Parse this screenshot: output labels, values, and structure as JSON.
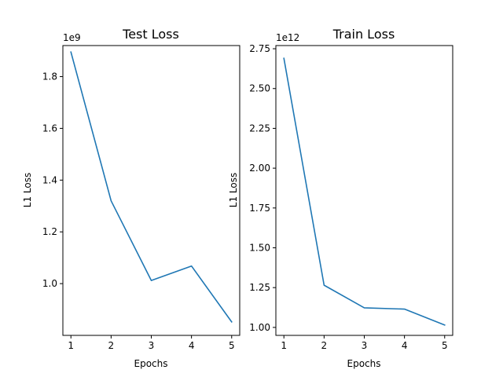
{
  "chart_data": [
    {
      "type": "line",
      "title": "Test Loss",
      "xlabel": "Epochs",
      "ylabel": "L1 Loss",
      "offset_text": "1e9",
      "x": [
        1,
        2,
        3,
        4,
        5
      ],
      "y": [
        1.895,
        1.32,
        1.012,
        1.068,
        0.852
      ],
      "xlim": [
        0.8,
        5.2
      ],
      "ylim": [
        0.8,
        1.92
      ],
      "xticks": [
        1,
        2,
        3,
        4,
        5
      ],
      "xtick_labels": [
        "1",
        "2",
        "3",
        "4",
        "5"
      ],
      "yticks": [
        1.0,
        1.2,
        1.4,
        1.6,
        1.8
      ],
      "ytick_labels": [
        "1.0",
        "1.2",
        "1.4",
        "1.6",
        "1.8"
      ],
      "color": "#1f77b4",
      "grid": false
    },
    {
      "type": "line",
      "title": "Train Loss",
      "xlabel": "Epochs",
      "ylabel": "L1 Loss",
      "offset_text": "1e12",
      "x": [
        1,
        2,
        3,
        4,
        5
      ],
      "y": [
        2.69,
        1.265,
        1.123,
        1.115,
        1.015
      ],
      "xlim": [
        0.8,
        5.2
      ],
      "ylim": [
        0.95,
        2.77
      ],
      "xticks": [
        1,
        2,
        3,
        4,
        5
      ],
      "xtick_labels": [
        "1",
        "2",
        "3",
        "4",
        "5"
      ],
      "yticks": [
        1.0,
        1.25,
        1.5,
        1.75,
        2.0,
        2.25,
        2.5,
        2.75
      ],
      "ytick_labels": [
        "1.00",
        "1.25",
        "1.50",
        "1.75",
        "2.00",
        "2.25",
        "2.50",
        "2.75"
      ],
      "color": "#1f77b4",
      "grid": false
    }
  ]
}
